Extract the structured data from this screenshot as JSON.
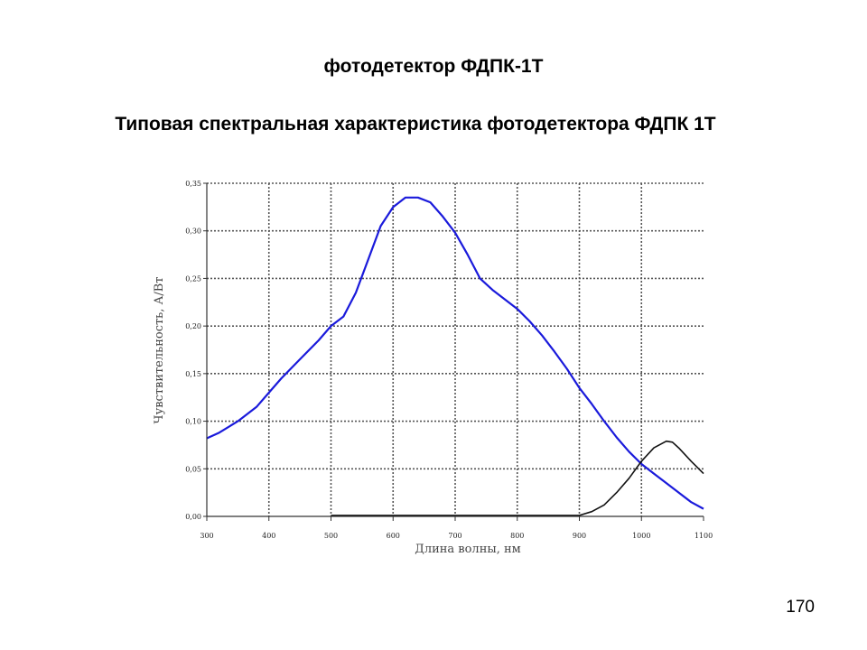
{
  "slide": {
    "title": "фотодетектор ФДПК-1Т",
    "subtitle": "Типовая спектральная характеристика фотодетектора  ФДПК 1Т",
    "page_number": "170"
  },
  "chart_data": {
    "type": "line",
    "title": "",
    "xlabel": "Длина волны, нм",
    "ylabel": "Чувствительность, А/Вт",
    "xlim": [
      300,
      1100
    ],
    "ylim": [
      0,
      0.35
    ],
    "x_ticks": [
      300,
      400,
      500,
      600,
      700,
      800,
      900,
      1000,
      1100
    ],
    "x_tick_labels": [
      "300",
      "400",
      "500",
      "600",
      "700",
      "800",
      "900",
      "1000",
      "1100"
    ],
    "y_ticks": [
      0,
      0.05,
      0.1,
      0.15,
      0.2,
      0.25,
      0.3,
      0.35
    ],
    "y_tick_labels": [
      "0,00",
      "0,05",
      "0,10",
      "0,15",
      "0,20",
      "0,25",
      "0,30",
      "0,35"
    ],
    "grid": true,
    "series": [
      {
        "color": "#1a1adb",
        "points": [
          [
            300,
            0.082
          ],
          [
            320,
            0.088
          ],
          [
            350,
            0.1
          ],
          [
            380,
            0.115
          ],
          [
            400,
            0.13
          ],
          [
            420,
            0.145
          ],
          [
            450,
            0.165
          ],
          [
            480,
            0.185
          ],
          [
            500,
            0.2
          ],
          [
            520,
            0.21
          ],
          [
            540,
            0.235
          ],
          [
            560,
            0.27
          ],
          [
            580,
            0.305
          ],
          [
            600,
            0.325
          ],
          [
            620,
            0.335
          ],
          [
            640,
            0.335
          ],
          [
            660,
            0.33
          ],
          [
            680,
            0.315
          ],
          [
            700,
            0.298
          ],
          [
            720,
            0.275
          ],
          [
            740,
            0.25
          ],
          [
            760,
            0.238
          ],
          [
            780,
            0.228
          ],
          [
            800,
            0.218
          ],
          [
            820,
            0.205
          ],
          [
            840,
            0.19
          ],
          [
            860,
            0.173
          ],
          [
            880,
            0.155
          ],
          [
            900,
            0.135
          ],
          [
            920,
            0.118
          ],
          [
            940,
            0.1
          ],
          [
            960,
            0.083
          ],
          [
            980,
            0.068
          ],
          [
            1000,
            0.055
          ],
          [
            1020,
            0.045
          ],
          [
            1040,
            0.035
          ],
          [
            1060,
            0.025
          ],
          [
            1080,
            0.015
          ],
          [
            1100,
            0.008
          ]
        ]
      },
      {
        "color": "#111111",
        "points": [
          [
            500,
            0.001
          ],
          [
            600,
            0.001
          ],
          [
            700,
            0.001
          ],
          [
            800,
            0.001
          ],
          [
            880,
            0.001
          ],
          [
            900,
            0.001
          ],
          [
            920,
            0.005
          ],
          [
            940,
            0.012
          ],
          [
            960,
            0.025
          ],
          [
            980,
            0.04
          ],
          [
            1000,
            0.058
          ],
          [
            1020,
            0.072
          ],
          [
            1040,
            0.079
          ],
          [
            1050,
            0.078
          ],
          [
            1060,
            0.072
          ],
          [
            1080,
            0.058
          ],
          [
            1100,
            0.045
          ]
        ]
      }
    ],
    "colors": {
      "grid": "#555555",
      "axis": "#333333"
    }
  }
}
